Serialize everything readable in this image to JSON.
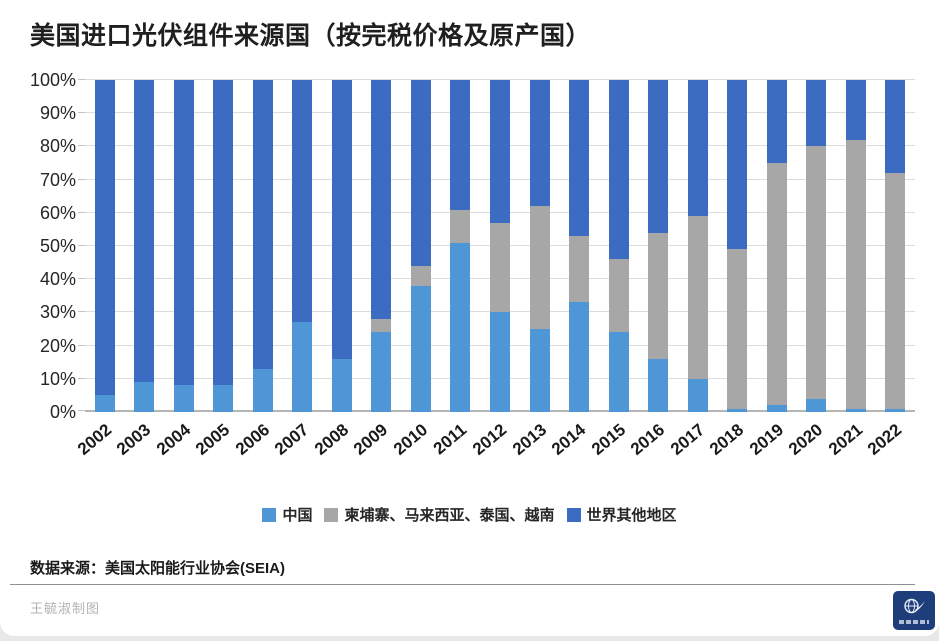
{
  "header": {
    "title": "美国进口光伏组件来源国（按完税价格及原产国）"
  },
  "chart_data": {
    "type": "bar",
    "stacked": true,
    "title": "美国进口光伏组件来源国（按完税价格及原产国）",
    "unit": "percent",
    "ylim": [
      0,
      100
    ],
    "grid": "horizontal",
    "legend_position": "bottom",
    "y_ticks": [
      "0%",
      "10%",
      "20%",
      "30%",
      "40%",
      "50%",
      "60%",
      "70%",
      "80%",
      "90%",
      "100%"
    ],
    "categories": [
      "2002",
      "2003",
      "2004",
      "2005",
      "2006",
      "2007",
      "2008",
      "2009",
      "2010",
      "2011",
      "2012",
      "2013",
      "2014",
      "2015",
      "2016",
      "2017",
      "2018",
      "2019",
      "2020",
      "2021",
      "2022"
    ],
    "series": [
      {
        "name": "中国",
        "color": "#4E96D5",
        "values": [
          5,
          9,
          8,
          8,
          13,
          27,
          16,
          24,
          38,
          51,
          30,
          25,
          33,
          24,
          16,
          10,
          1,
          2,
          4,
          1,
          1
        ]
      },
      {
        "name": "柬埔寨、马来西亚、泰国、越南",
        "color": "#A7A7A7",
        "values": [
          0,
          0,
          0,
          0,
          0,
          0,
          0,
          4,
          6,
          10,
          27,
          37,
          20,
          22,
          38,
          49,
          48,
          73,
          76,
          81,
          71
        ]
      },
      {
        "name": "世界其他地区",
        "color": "#3B6CC1",
        "values": [
          95,
          91,
          92,
          92,
          87,
          73,
          84,
          72,
          56,
          39,
          43,
          38,
          47,
          54,
          46,
          41,
          51,
          25,
          20,
          18,
          28
        ]
      }
    ]
  },
  "footer": {
    "source": "数据来源：美国太阳能行业协会(SEIA)",
    "credit": "王毓淑制图"
  },
  "logo": {
    "icon": "globe-swoosh",
    "background": "#1E3E7B"
  },
  "colors": {
    "china": "#4E96D5",
    "se_asia_4": "#A7A7A7",
    "rest_of_world": "#3B6CC1",
    "gridline": "#DCDCDC",
    "axis": "#B5B5B5"
  }
}
